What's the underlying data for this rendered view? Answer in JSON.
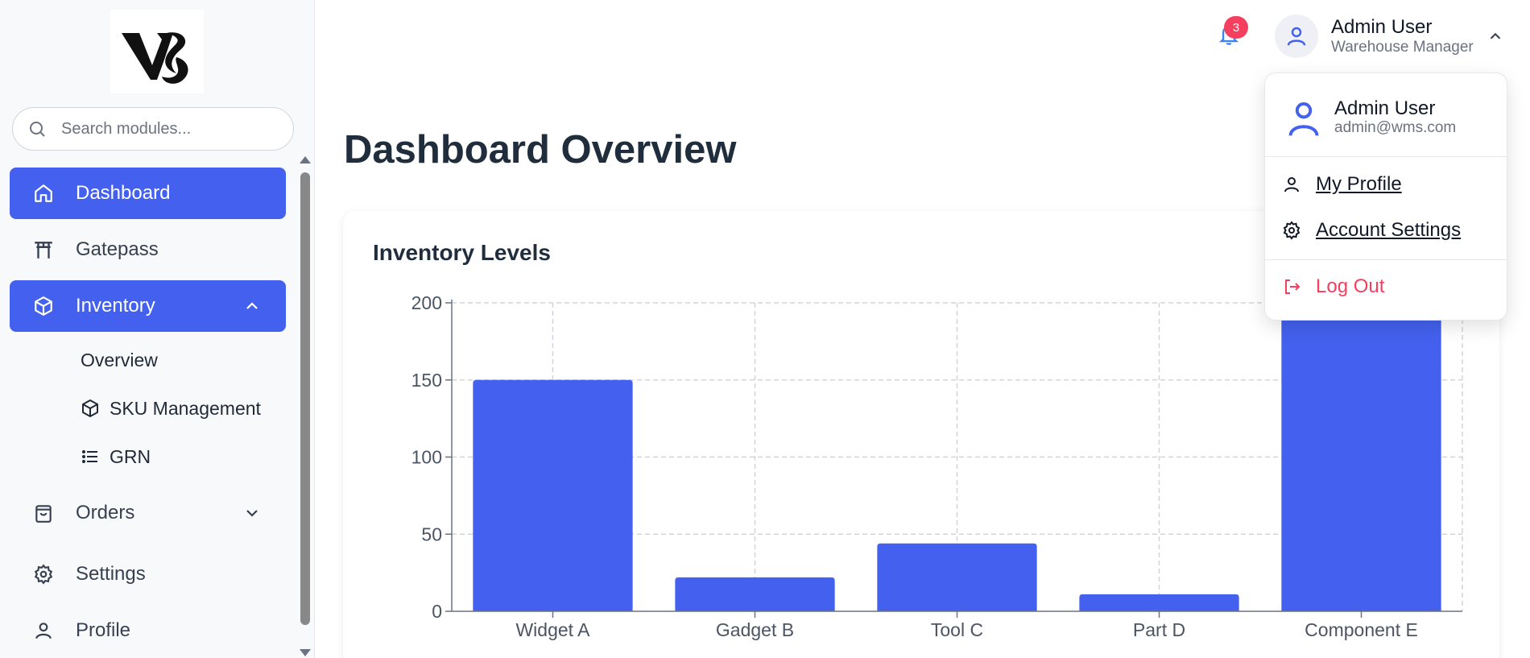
{
  "sidebar": {
    "search_placeholder": "Search modules...",
    "items": [
      {
        "label": "Dashboard"
      },
      {
        "label": "Gatepass"
      },
      {
        "label": "Inventory"
      },
      {
        "label": "Orders"
      },
      {
        "label": "Settings"
      },
      {
        "label": "Profile"
      }
    ],
    "inventory_sub": [
      {
        "label": "Overview"
      },
      {
        "label": "SKU Management"
      },
      {
        "label": "GRN"
      }
    ]
  },
  "header": {
    "notification_count": "3",
    "user_name": "Admin User",
    "user_role": "Warehouse Manager"
  },
  "main": {
    "page_title": "Dashboard Overview",
    "card_title": "Inventory Levels"
  },
  "dropdown": {
    "name": "Admin User",
    "email": "admin@wms.com",
    "my_profile": "My Profile",
    "account_settings": "Account Settings",
    "log_out": "Log Out"
  },
  "colors": {
    "accent": "#4361ee",
    "danger": "#f43f5e"
  },
  "chart_data": {
    "type": "bar",
    "title": "Inventory Levels",
    "categories": [
      "Widget A",
      "Gadget B",
      "Tool C",
      "Part D",
      "Component E"
    ],
    "values": [
      150,
      22,
      44,
      11,
      200
    ],
    "ylim": [
      0,
      200
    ],
    "yticks": [
      0,
      50,
      100,
      150,
      200
    ],
    "xlabel": "",
    "ylabel": "",
    "grid": true
  }
}
